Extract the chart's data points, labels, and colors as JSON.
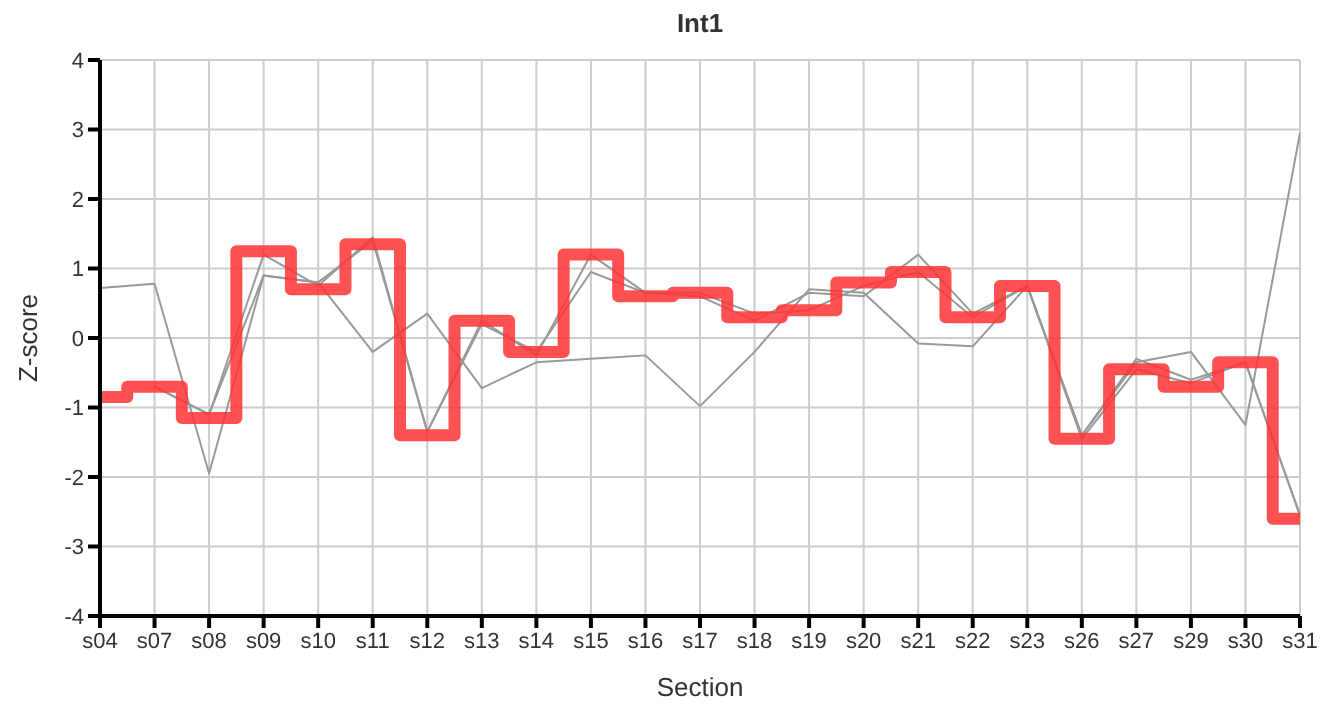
{
  "chart_data": {
    "type": "line",
    "title": "Int1",
    "xlabel": "Section",
    "ylabel": "Z-score",
    "categories": [
      "s04",
      "s07",
      "s08",
      "s09",
      "s10",
      "s11",
      "s12",
      "s13",
      "s14",
      "s15",
      "s16",
      "s17",
      "s18",
      "s19",
      "s20",
      "s21",
      "s22",
      "s23",
      "s26",
      "s27",
      "s29",
      "s30",
      "s31"
    ],
    "series": [
      {
        "color": "#999999",
        "values": [
          0.72,
          0.78,
          -1.95,
          0.9,
          0.8,
          -0.2,
          0.35,
          -0.72,
          -0.35,
          -0.3,
          -0.25,
          -0.98,
          -0.2,
          0.7,
          0.65,
          -0.08,
          -0.12,
          0.75,
          -1.4,
          -0.35,
          -0.2,
          -1.25,
          2.95
        ]
      },
      {
        "color": "#999999",
        "values": [
          null,
          -0.7,
          -1.1,
          0.9,
          0.8,
          1.4,
          -1.35,
          0.2,
          -0.2,
          0.95,
          0.65,
          0.6,
          0.25,
          0.65,
          0.6,
          1.2,
          0.35,
          0.75,
          -1.4,
          -0.3,
          -0.6,
          -0.35,
          -2.55
        ]
      },
      {
        "color": "#999999",
        "values": [
          null,
          -0.7,
          -1.1,
          1.2,
          0.75,
          1.45,
          -1.35,
          0.25,
          -0.25,
          1.2,
          0.65,
          0.65,
          0.35,
          0.4,
          0.75,
          0.95,
          0.3,
          0.75,
          -1.45,
          -0.45,
          -0.65,
          -0.35,
          -2.55
        ]
      },
      {
        "type": "step",
        "color": "#ff3333",
        "values": [
          -0.85,
          -0.7,
          -1.15,
          1.25,
          0.7,
          1.35,
          -1.4,
          0.25,
          -0.2,
          1.2,
          0.6,
          0.65,
          0.3,
          0.4,
          0.8,
          0.95,
          0.3,
          0.75,
          -1.45,
          -0.45,
          -0.7,
          -0.35,
          -2.6
        ]
      }
    ],
    "ylim": [
      -4,
      4
    ],
    "yticks": [
      -4,
      -3,
      -2,
      -1,
      0,
      1,
      2,
      3,
      4
    ],
    "grid": true,
    "legend": false,
    "marker": "none",
    "line_style": "solid"
  }
}
